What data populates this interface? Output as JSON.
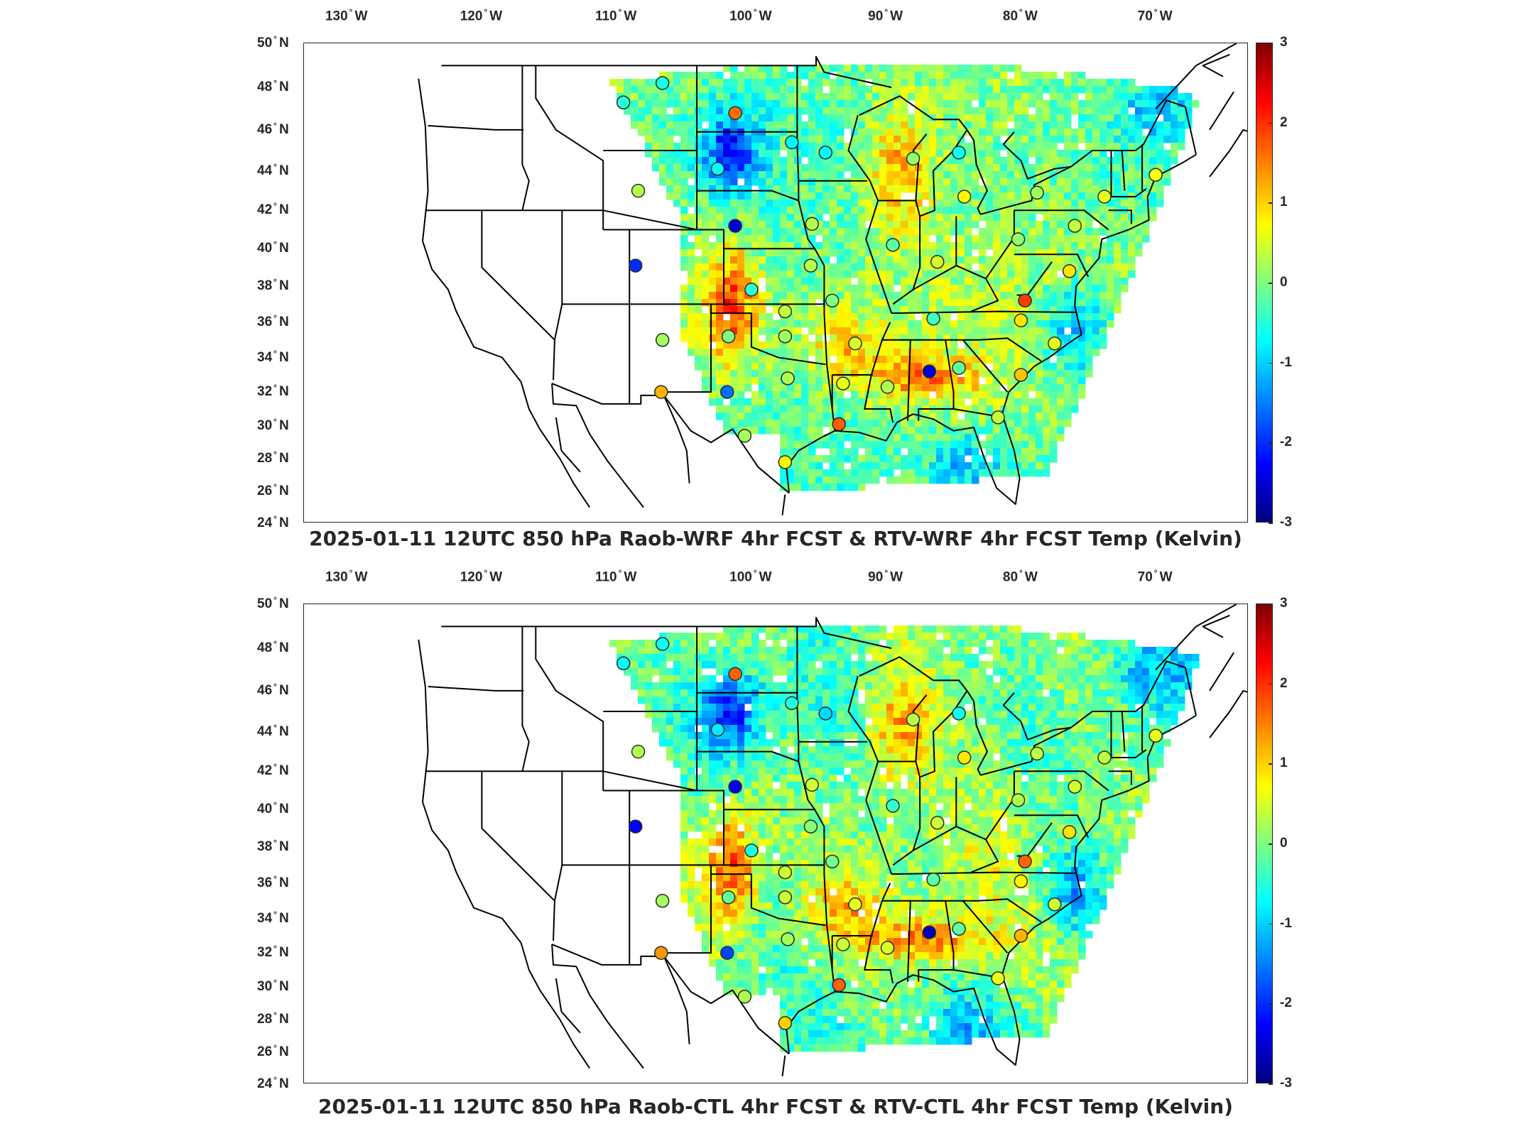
{
  "panels": [
    {
      "caption": "2025-01-11 12UTC 850 hPa Raob-WRF 4hr FCST & RTV-WRF 4hr FCST Temp (Kelvin)"
    },
    {
      "caption": "2025-01-11 12UTC 850 hPa Raob-CTL 4hr FCST & RTV-CTL 4hr FCST Temp (Kelvin)"
    }
  ],
  "lon_labels": [
    "130",
    "120",
    "110",
    "100",
    "90",
    "80",
    "70"
  ],
  "lon_hemisphere": "W",
  "lat_labels": [
    "50",
    "48",
    "46",
    "44",
    "42",
    "40",
    "38",
    "36",
    "34",
    "32",
    "30",
    "28",
    "26",
    "24"
  ],
  "lat_hemisphere": "N",
  "colorbar": {
    "ticks": [
      "3",
      "2",
      "1",
      "0",
      "-1",
      "-2",
      "-3"
    ],
    "min": -3,
    "max": 3,
    "colormap": "jet"
  },
  "colors": {
    "frame": "#262626",
    "state_lines": "#000000"
  },
  "stations": [
    {
      "lon": -109.5,
      "lat": 47.3,
      "value": -0.5
    },
    {
      "lon": -106.6,
      "lat": 48.2,
      "value": -0.6
    },
    {
      "lon": -101.2,
      "lat": 46.8,
      "value": 1.6
    },
    {
      "lon": -97.0,
      "lat": 45.4,
      "value": -0.8
    },
    {
      "lon": -102.5,
      "lat": 44.1,
      "value": -0.7
    },
    {
      "lon": -108.4,
      "lat": 43.0,
      "value": 0.3
    },
    {
      "lon": -101.2,
      "lat": 41.2,
      "value": -2.5
    },
    {
      "lon": -108.6,
      "lat": 39.1,
      "value": -2.0
    },
    {
      "lon": -100.0,
      "lat": 37.8,
      "value": -0.5
    },
    {
      "lon": -97.5,
      "lat": 36.6,
      "value": 0.4
    },
    {
      "lon": -97.5,
      "lat": 35.2,
      "value": 0.2
    },
    {
      "lon": -101.7,
      "lat": 35.2,
      "value": 0.0
    },
    {
      "lon": -106.6,
      "lat": 35.0,
      "value": 0.2
    },
    {
      "lon": -106.7,
      "lat": 32.0,
      "value": 1.2
    },
    {
      "lon": -101.8,
      "lat": 32.0,
      "value": -1.6
    },
    {
      "lon": -97.3,
      "lat": 32.8,
      "value": 0.3
    },
    {
      "lon": -100.5,
      "lat": 29.4,
      "value": 0.2
    },
    {
      "lon": -97.5,
      "lat": 27.8,
      "value": 0.8
    },
    {
      "lon": -93.2,
      "lat": 32.5,
      "value": 0.6
    },
    {
      "lon": -93.5,
      "lat": 30.1,
      "value": 1.7
    },
    {
      "lon": -95.5,
      "lat": 41.3,
      "value": 0.3
    },
    {
      "lon": -95.6,
      "lat": 39.1,
      "value": 0.3
    },
    {
      "lon": -94.0,
      "lat": 37.2,
      "value": 0.0
    },
    {
      "lon": -92.3,
      "lat": 34.8,
      "value": 0.5
    },
    {
      "lon": -89.9,
      "lat": 32.3,
      "value": 0.3
    },
    {
      "lon": -86.8,
      "lat": 33.2,
      "value": -2.5
    },
    {
      "lon": -84.6,
      "lat": 33.4,
      "value": -0.2
    },
    {
      "lon": -86.5,
      "lat": 36.2,
      "value": -0.4
    },
    {
      "lon": -89.5,
      "lat": 40.2,
      "value": -0.2
    },
    {
      "lon": -86.2,
      "lat": 39.3,
      "value": 0.5
    },
    {
      "lon": -84.2,
      "lat": 42.7,
      "value": 0.8
    },
    {
      "lon": -88.0,
      "lat": 44.6,
      "value": 0.1
    },
    {
      "lon": -94.5,
      "lat": 44.9,
      "value": -0.8
    },
    {
      "lon": -84.6,
      "lat": 44.9,
      "value": -0.7
    },
    {
      "lon": -80.2,
      "lat": 40.5,
      "value": 0.1
    },
    {
      "lon": -79.7,
      "lat": 37.2,
      "value": 1.9
    },
    {
      "lon": -80.0,
      "lat": 36.1,
      "value": 0.9
    },
    {
      "lon": -80.0,
      "lat": 33.0,
      "value": 1.1
    },
    {
      "lon": -81.7,
      "lat": 30.5,
      "value": 0.4
    },
    {
      "lon": -77.5,
      "lat": 34.8,
      "value": 0.6
    },
    {
      "lon": -76.4,
      "lat": 38.8,
      "value": 0.9
    },
    {
      "lon": -78.8,
      "lat": 42.9,
      "value": 0.2
    },
    {
      "lon": -73.8,
      "lat": 42.7,
      "value": 0.6
    },
    {
      "lon": -70.0,
      "lat": 43.8,
      "value": 0.7
    },
    {
      "lon": -76.0,
      "lat": 41.2,
      "value": 0.4
    }
  ]
}
